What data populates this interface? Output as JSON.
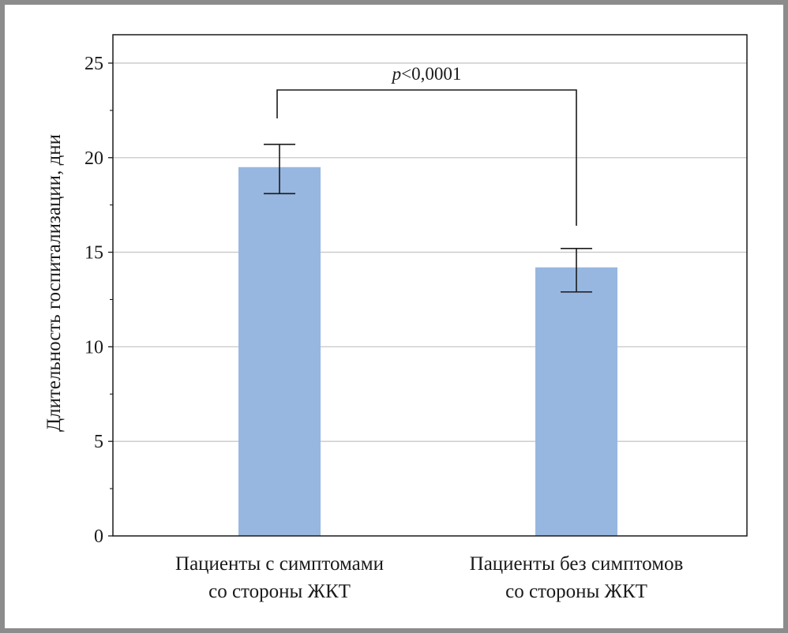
{
  "chart_data": {
    "type": "bar",
    "categories": [
      [
        "Пациенты с симптомами",
        "со стороны ЖКТ"
      ],
      [
        "Пациенты без симптомов",
        "со стороны ЖКТ"
      ]
    ],
    "values": [
      19.5,
      14.2
    ],
    "error_low": [
      18.1,
      12.9
    ],
    "error_high": [
      20.7,
      15.2
    ],
    "ylabel": "Длительность госпитализации, дни",
    "ylim": [
      0,
      26.5
    ],
    "yticks": [
      0,
      5,
      10,
      15,
      20,
      25
    ],
    "grid": true,
    "bar_color": "#97b7e0",
    "annotation": {
      "italic": "p",
      "text": "<0,0001"
    }
  }
}
